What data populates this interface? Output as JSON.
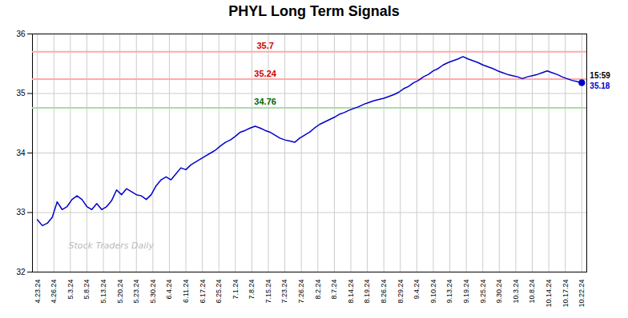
{
  "chart_data": {
    "type": "line",
    "title": "PHYL Long Term Signals",
    "x": [
      0,
      0.3,
      0.6,
      0.9,
      1.2,
      1.5,
      1.8,
      2.1,
      2.4,
      2.7,
      3,
      3.3,
      3.6,
      3.9,
      4.2,
      4.5,
      4.8,
      5.1,
      5.4,
      5.7,
      6,
      6.3,
      6.6,
      6.9,
      7.2,
      7.5,
      7.8,
      8.1,
      8.4,
      8.7,
      9,
      9.3,
      9.6,
      9.9,
      10.2,
      10.5,
      10.8,
      11.1,
      11.4,
      11.7,
      12,
      12.3,
      12.6,
      12.9,
      13.2,
      13.5,
      13.8,
      14.1,
      14.4,
      14.7,
      15,
      15.3,
      15.6,
      15.9,
      16.2,
      16.5,
      16.8,
      17.1,
      17.4,
      17.7,
      18,
      18.3,
      18.6,
      18.9,
      19.2,
      19.5,
      19.8,
      20.1,
      20.4,
      20.7,
      21,
      21.3,
      21.6,
      21.9,
      22.2,
      22.5,
      22.8,
      23.1,
      23.4,
      23.7,
      24,
      24.3,
      24.6,
      24.9,
      25.2,
      25.5,
      25.8,
      26.1,
      26.4,
      26.7,
      27,
      27.3,
      27.6,
      27.9,
      28.2,
      28.5,
      28.8,
      29.1,
      29.4,
      29.7,
      30,
      30.3,
      30.6,
      30.9,
      31.2,
      31.5,
      31.8,
      32.1,
      32.4,
      32.7,
      33
    ],
    "series": [
      {
        "color": "#0000cc",
        "values": [
          32.88,
          32.78,
          32.82,
          32.92,
          33.18,
          33.05,
          33.1,
          33.22,
          33.28,
          33.22,
          33.1,
          33.05,
          33.15,
          33.05,
          33.1,
          33.2,
          33.38,
          33.3,
          33.4,
          33.35,
          33.3,
          33.28,
          33.22,
          33.3,
          33.45,
          33.55,
          33.6,
          33.55,
          33.65,
          33.75,
          33.72,
          33.8,
          33.85,
          33.9,
          33.95,
          34.0,
          34.05,
          34.12,
          34.18,
          34.22,
          34.28,
          34.35,
          34.38,
          34.42,
          34.45,
          34.42,
          34.38,
          34.35,
          34.3,
          34.25,
          34.22,
          34.2,
          34.18,
          34.25,
          34.3,
          34.35,
          34.42,
          34.48,
          34.52,
          34.56,
          34.6,
          34.65,
          34.68,
          34.72,
          34.75,
          34.78,
          34.82,
          34.85,
          34.88,
          34.9,
          34.92,
          34.95,
          34.98,
          35.02,
          35.08,
          35.12,
          35.18,
          35.22,
          35.28,
          35.32,
          35.38,
          35.42,
          35.48,
          35.52,
          35.55,
          35.58,
          35.62,
          35.58,
          35.55,
          35.52,
          35.48,
          35.45,
          35.42,
          35.38,
          35.35,
          35.32,
          35.3,
          35.28,
          35.25,
          35.28,
          35.3,
          35.32,
          35.35,
          35.38,
          35.35,
          35.32,
          35.28,
          35.25,
          35.22,
          35.2,
          35.18
        ]
      }
    ],
    "xlim": [
      -0.3,
      33.3
    ],
    "xticks": [
      {
        "value": 0,
        "label": "4.23.24"
      },
      {
        "value": 1,
        "label": "4.26.24"
      },
      {
        "value": 2,
        "label": "5.3.24"
      },
      {
        "value": 3,
        "label": "5.8.24"
      },
      {
        "value": 4,
        "label": "5.13.24"
      },
      {
        "value": 5,
        "label": "5.20.24"
      },
      {
        "value": 6,
        "label": "5.23.24"
      },
      {
        "value": 7,
        "label": "5.30.24"
      },
      {
        "value": 8,
        "label": "6.4.24"
      },
      {
        "value": 9,
        "label": "6.11.24"
      },
      {
        "value": 10,
        "label": "6.17.24"
      },
      {
        "value": 11,
        "label": "6.25.24"
      },
      {
        "value": 12,
        "label": "7.1.24"
      },
      {
        "value": 13,
        "label": "7.8.24"
      },
      {
        "value": 14,
        "label": "7.15.24"
      },
      {
        "value": 15,
        "label": "7.23.24"
      },
      {
        "value": 16,
        "label": "7.26.24"
      },
      {
        "value": 17,
        "label": "8.2.24"
      },
      {
        "value": 18,
        "label": "8.7.24"
      },
      {
        "value": 19,
        "label": "8.14.24"
      },
      {
        "value": 20,
        "label": "8.19.24"
      },
      {
        "value": 21,
        "label": "8.26.24"
      },
      {
        "value": 22,
        "label": "8.29.24"
      },
      {
        "value": 23,
        "label": "9.4.24"
      },
      {
        "value": 24,
        "label": "9.10.24"
      },
      {
        "value": 25,
        "label": "9.13.24"
      },
      {
        "value": 26,
        "label": "9.19.24"
      },
      {
        "value": 27,
        "label": "9.25.24"
      },
      {
        "value": 28,
        "label": "9.30.24"
      },
      {
        "value": 29,
        "label": "10.3.24"
      },
      {
        "value": 30,
        "label": "10.8.24"
      },
      {
        "value": 31,
        "label": "10.14.24"
      },
      {
        "value": 32,
        "label": "10.17.24"
      },
      {
        "value": 33,
        "label": "10.22.24"
      }
    ],
    "ylim": [
      32,
      36
    ],
    "yticks": [
      32,
      33,
      34,
      35,
      36
    ],
    "grid": true,
    "hlines": [
      {
        "value": 35.7,
        "color": "#ffaaaa",
        "label": "35.7",
        "label_color": "#cc0000"
      },
      {
        "value": 35.24,
        "color": "#ffaaaa",
        "label": "35.24",
        "label_color": "#cc0000"
      },
      {
        "value": 34.76,
        "color": "#aaddaa",
        "label": "34.76",
        "label_color": "#006600"
      }
    ],
    "marker_point": {
      "x": 33,
      "y": 35.18,
      "color": "#0000cc"
    },
    "annotations": [
      {
        "text": "15:59",
        "x": 33,
        "y": 35.18,
        "color": "#000000"
      },
      {
        "text": "35.18",
        "x": 33,
        "y": 35.18,
        "color": "#0000cc"
      }
    ],
    "watermark": {
      "text": "Stock Traders Daily",
      "color": "#bbbbbb"
    }
  }
}
